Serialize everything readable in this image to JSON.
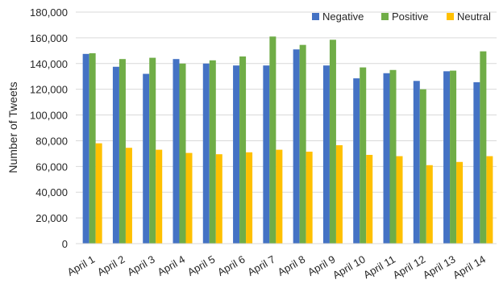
{
  "chart_data": {
    "type": "bar",
    "categories": [
      "April 1",
      "April 2",
      "April 3",
      "April 4",
      "April 5",
      "April 6",
      "April 7",
      "April 8",
      "April 9",
      "April 10",
      "April 11",
      "April 12",
      "April 13",
      "April 14"
    ],
    "series": [
      {
        "name": "Negative",
        "color": "#4472C4",
        "values": [
          147500,
          137500,
          132000,
          143500,
          140000,
          138500,
          138500,
          151000,
          138500,
          128500,
          132500,
          126500,
          134000,
          125500
        ]
      },
      {
        "name": "Positive",
        "color": "#70AD47",
        "values": [
          148000,
          143500,
          144500,
          140000,
          142500,
          145500,
          161000,
          154500,
          158500,
          137000,
          135000,
          120000,
          134500,
          149500
        ]
      },
      {
        "name": "Neutral",
        "color": "#FFC000",
        "values": [
          78000,
          74500,
          73000,
          70500,
          69500,
          71000,
          73000,
          71500,
          76500,
          69000,
          68000,
          61000,
          63500,
          68000
        ]
      }
    ],
    "title": "",
    "xlabel": "",
    "ylabel": "Number of Tweets",
    "ylim": [
      0,
      180000
    ],
    "yticks": [
      0,
      20000,
      40000,
      60000,
      80000,
      100000,
      120000,
      140000,
      160000,
      180000
    ],
    "ytick_labels": [
      "0",
      "20,000",
      "40,000",
      "60,000",
      "80,000",
      "100,000",
      "120,000",
      "140,000",
      "160,000",
      "180,000"
    ],
    "grid": true,
    "legend_position": "top-right"
  }
}
